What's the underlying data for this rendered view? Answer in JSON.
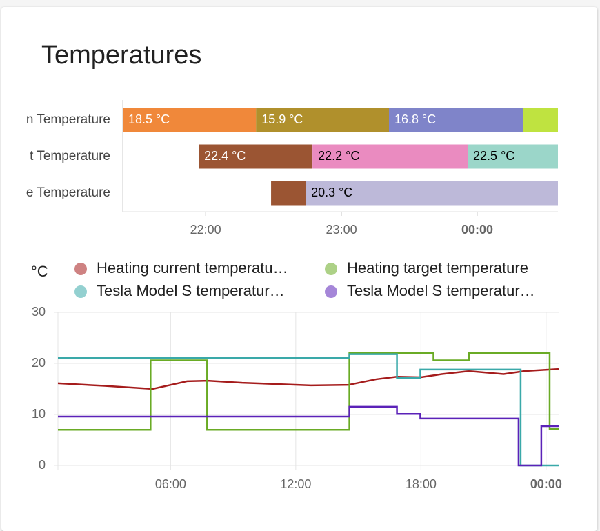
{
  "card": {
    "title": "Temperatures"
  },
  "chart_data": [
    {
      "type": "timeline",
      "xlim": [
        21.39,
        24.594
      ],
      "xticks": [
        {
          "value": 22,
          "label": "22:00"
        },
        {
          "value": 23,
          "label": "23:00"
        },
        {
          "value": 24,
          "label": "00:00"
        }
      ],
      "rows": [
        {
          "label": "n Temperature",
          "segments": [
            {
              "start": 21.39,
              "end": 22.371,
              "label": "18.5 °C",
              "color": "#f0883a"
            },
            {
              "start": 22.371,
              "end": 23.35,
              "label": "15.9 °C",
              "color": "#b0902c"
            },
            {
              "start": 23.35,
              "end": 24.335,
              "label": "16.8 °C",
              "color": "#7f84c9"
            },
            {
              "start": 24.335,
              "end": 24.594,
              "color": "#bfe340"
            }
          ]
        },
        {
          "label": "t Temperature",
          "segments": [
            {
              "start": 21.949,
              "end": 22.787,
              "label": "22.4 °C",
              "color": "#9b5533"
            },
            {
              "start": 22.787,
              "end": 23.929,
              "label": "22.2 °C",
              "color": "#ea8bc0"
            },
            {
              "start": 23.929,
              "end": 24.594,
              "label": "22.5 °C",
              "color": "#9bd6c9"
            }
          ]
        },
        {
          "label": "e Temperature",
          "segments": [
            {
              "start": 22.482,
              "end": 22.736,
              "color": "#9b5533"
            },
            {
              "start": 22.736,
              "end": 24.594,
              "label": "20.3 °C",
              "color": "#bdb9d9"
            }
          ]
        }
      ]
    },
    {
      "type": "line",
      "y_label": "°C",
      "xlim": [
        0.6,
        24.6
      ],
      "ylim": [
        0,
        30
      ],
      "xticks": [
        {
          "value": 6,
          "label": "06:00"
        },
        {
          "value": 12,
          "label": "12:00"
        },
        {
          "value": 18,
          "label": "18:00"
        },
        {
          "value": 24,
          "label": "00:00"
        }
      ],
      "yticks": [
        0,
        10,
        20,
        30
      ],
      "grid": true,
      "series": [
        {
          "name": "Heating current temperatu…",
          "color": "#a51c1c",
          "step": false,
          "x": [
            0.6,
            2.83,
            5.14,
            6.79,
            7.78,
            9.43,
            12.73,
            14.54,
            15.86,
            16.85,
            18.0,
            19.0,
            20.3,
            21.96,
            22.95,
            24.6
          ],
          "values": [
            16.1,
            15.6,
            15.0,
            16.5,
            16.6,
            16.2,
            15.7,
            15.8,
            16.9,
            17.4,
            17.3,
            17.9,
            18.5,
            17.9,
            18.5,
            18.9
          ]
        },
        {
          "name": "Heating target temperature",
          "color": "#6aab25",
          "step": true,
          "x": [
            0.6,
            5.04,
            7.75,
            14.57,
            18.6,
            20.3,
            24.17
          ],
          "values": [
            7,
            20.6,
            7,
            22,
            20.6,
            22,
            7.2
          ]
        },
        {
          "name": "Tesla Model S temperatur…",
          "color": "#3aa9a9",
          "step": true,
          "x": [
            0.6,
            14.57,
            16.85,
            17.97,
            22.78
          ],
          "values": [
            21.1,
            21.8,
            17.2,
            18.8,
            0
          ]
        },
        {
          "name": "Tesla Model S temperatur…",
          "color": "#5b22b8",
          "step": true,
          "x": [
            0.6,
            14.57,
            16.85,
            17.97,
            22.68,
            23.77
          ],
          "values": [
            9.6,
            11.5,
            10.1,
            9.2,
            0,
            7.7
          ]
        }
      ]
    }
  ]
}
